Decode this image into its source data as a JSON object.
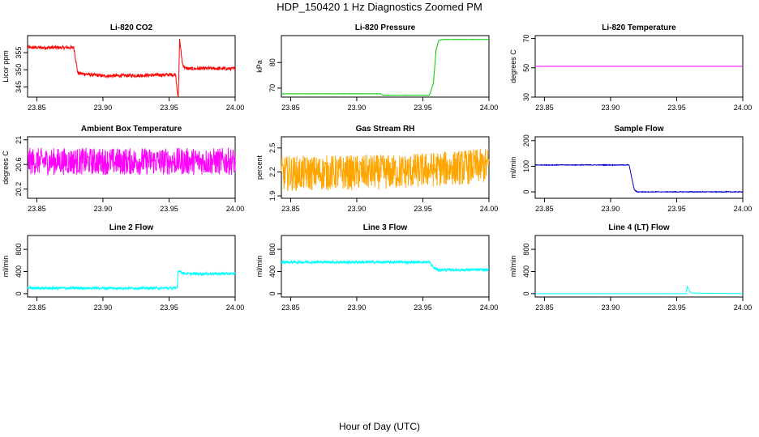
{
  "title": "HDP_150420  1 Hz Diagnostics Zoomed PM",
  "xlabel": "Hour of Day (UTC)",
  "chart_data": [
    {
      "type": "line",
      "title": "Li-820 CO2",
      "ylabel": "Licor ppm",
      "color": "#ff0000",
      "xlim": [
        23.843,
        24.0
      ],
      "ylim": [
        342,
        360
      ],
      "yticks": [
        345,
        350,
        355
      ],
      "xticks": [
        23.85,
        23.9,
        23.95,
        24.0
      ],
      "x": [
        23.843,
        23.878,
        23.879,
        23.881,
        23.9,
        23.935,
        23.955,
        23.957,
        23.958,
        23.96,
        23.962,
        23.965,
        23.98,
        24.0
      ],
      "y": [
        356.5,
        356.5,
        354,
        349,
        348.2,
        348.4,
        348.6,
        341,
        359,
        352,
        350.5,
        350.3,
        350.4,
        350.3
      ],
      "noise": 0.5
    },
    {
      "type": "line",
      "title": "Li-820 Pressure",
      "ylabel": "kPa",
      "color": "#00cc00",
      "xlim": [
        23.843,
        24.0
      ],
      "ylim": [
        66.5,
        90.5
      ],
      "yticks": [
        70,
        80
      ],
      "xticks": [
        23.85,
        23.9,
        23.95,
        24.0
      ],
      "x": [
        23.843,
        23.918,
        23.92,
        23.955,
        23.958,
        23.96,
        23.962,
        23.965,
        23.97,
        24.0
      ],
      "y": [
        67.8,
        67.8,
        67.2,
        67.2,
        72,
        85,
        88.6,
        89,
        89,
        89
      ],
      "noise": 0.05
    },
    {
      "type": "line",
      "title": "Li-820 Temperature",
      "ylabel": "degrees C",
      "color": "#ff00ff",
      "xlim": [
        23.843,
        24.0
      ],
      "ylim": [
        30,
        72
      ],
      "yticks": [
        30,
        50,
        70
      ],
      "xticks": [
        23.85,
        23.9,
        23.95,
        24.0
      ],
      "x": [
        23.843,
        24.0
      ],
      "y": [
        51,
        51
      ],
      "noise": 0
    },
    {
      "type": "line",
      "title": "Ambient Box Temperature",
      "ylabel": "degrees C",
      "color": "#ff00ff",
      "xlim": [
        23.843,
        24.0
      ],
      "ylim": [
        20.05,
        21.05
      ],
      "yticks": [
        20.2,
        20.6,
        21.0
      ],
      "xticks": [
        23.85,
        23.9,
        23.95,
        24.0
      ],
      "x": [
        23.843,
        24.0
      ],
      "y": [
        20.65,
        20.65
      ],
      "noise": 0.22
    },
    {
      "type": "line",
      "title": "Gas Stream RH",
      "ylabel": "percent",
      "color": "#ffa500",
      "xlim": [
        23.843,
        24.0
      ],
      "ylim": [
        1.87,
        2.64
      ],
      "yticks": [
        1.9,
        2.2,
        2.5
      ],
      "xticks": [
        23.85,
        23.9,
        23.95,
        24.0
      ],
      "x": [
        23.843,
        23.93,
        24.0
      ],
      "y": [
        2.18,
        2.2,
        2.28
      ],
      "noise": 0.22
    },
    {
      "type": "line",
      "title": "Sample Flow",
      "ylabel": "ml/min",
      "color": "#0000cd",
      "xlim": [
        23.843,
        24.0
      ],
      "ylim": [
        -25,
        215
      ],
      "yticks": [
        0,
        100,
        200
      ],
      "xticks": [
        23.85,
        23.9,
        23.95,
        24.0
      ],
      "x": [
        23.843,
        23.914,
        23.915,
        23.917,
        23.918,
        23.92,
        24.0
      ],
      "y": [
        105,
        105,
        80,
        30,
        8,
        0,
        0
      ],
      "noise": 1.5
    },
    {
      "type": "line",
      "title": "Line 2 Flow",
      "ylabel": "ml/min",
      "color": "#00ffff",
      "xlim": [
        23.843,
        24.0
      ],
      "ylim": [
        -60,
        1050
      ],
      "yticks": [
        0,
        400,
        800
      ],
      "xticks": [
        23.85,
        23.9,
        23.95,
        24.0
      ],
      "x": [
        23.843,
        23.956,
        23.957,
        23.96,
        23.963,
        24.0
      ],
      "y": [
        100,
        100,
        420,
        380,
        360,
        360
      ],
      "noise": 25
    },
    {
      "type": "line",
      "title": "Line 3 Flow",
      "ylabel": "ml/min",
      "color": "#00ffff",
      "xlim": [
        23.843,
        24.0
      ],
      "ylim": [
        -60,
        1050
      ],
      "yticks": [
        0,
        400,
        800
      ],
      "xticks": [
        23.85,
        23.9,
        23.95,
        24.0
      ],
      "x": [
        23.843,
        23.955,
        23.958,
        23.962,
        24.0
      ],
      "y": [
        570,
        570,
        470,
        430,
        430
      ],
      "noise": 25
    },
    {
      "type": "line",
      "title": "Line 4 (LT) Flow",
      "ylabel": "ml/min",
      "color": "#00ffff",
      "xlim": [
        23.843,
        24.0
      ],
      "ylim": [
        -60,
        1050
      ],
      "yticks": [
        0,
        400,
        800
      ],
      "xticks": [
        23.85,
        23.9,
        23.95,
        24.0
      ],
      "x": [
        23.843,
        23.957,
        23.958,
        23.96,
        23.962,
        24.0
      ],
      "y": [
        0,
        0,
        130,
        30,
        10,
        0
      ],
      "noise": 1
    }
  ]
}
